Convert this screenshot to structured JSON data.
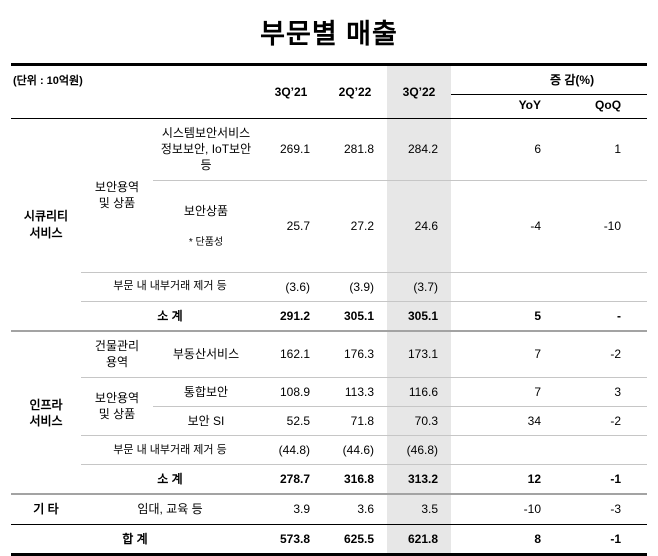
{
  "title": "부문별 매출",
  "unit_label": "(단위 : 10억원)",
  "header": {
    "q1": "3Q’21",
    "q2": "2Q’22",
    "q3": "3Q’22",
    "change": "증 감(%)",
    "yoy": "YoY",
    "qoq": "QoQ"
  },
  "groups": {
    "security": "시큐리티\n서비스",
    "infra": "인프라\n서비스",
    "etc": "기 타",
    "total": "합 계"
  },
  "subgroups": {
    "sec_service_goods": "보안용역\n및 상품",
    "building_mgmt": "건물관리\n용역",
    "infra_service_goods": "보안용역\n및 상품"
  },
  "rows": {
    "sys": {
      "item": "시스템보안서비스\n정보보안, IoT보안 등",
      "q1": "269.1",
      "q2": "281.8",
      "q3": "284.2",
      "yoy": "6",
      "qoq": "1"
    },
    "prod": {
      "item": "보안상품",
      "note": "* 단품성",
      "q1": "25.7",
      "q2": "27.2",
      "q3": "24.6",
      "yoy": "-4",
      "qoq": "-10"
    },
    "elim1": {
      "item": "부문 내 내부거래 제거 등",
      "q1": "(3.6)",
      "q2": "(3.9)",
      "q3": "(3.7)",
      "yoy": "",
      "qoq": ""
    },
    "sub1": {
      "item": "소 계",
      "q1": "291.2",
      "q2": "305.1",
      "q3": "305.1",
      "yoy": "5",
      "qoq": "-"
    },
    "re": {
      "item": "부동산서비스",
      "q1": "162.1",
      "q2": "176.3",
      "q3": "173.1",
      "yoy": "7",
      "qoq": "-2"
    },
    "int": {
      "item": "통합보안",
      "q1": "108.9",
      "q2": "113.3",
      "q3": "116.6",
      "yoy": "7",
      "qoq": "3"
    },
    "si": {
      "item": "보안 SI",
      "q1": "52.5",
      "q2": "71.8",
      "q3": "70.3",
      "yoy": "34",
      "qoq": "-2"
    },
    "elim2": {
      "item": "부문 내 내부거래 제거 등",
      "q1": "(44.8)",
      "q2": "(44.6)",
      "q3": "(46.8)",
      "yoy": "",
      "qoq": ""
    },
    "sub2": {
      "item": "소 계",
      "q1": "278.7",
      "q2": "316.8",
      "q3": "313.2",
      "yoy": "12",
      "qoq": "-1"
    },
    "etc": {
      "item": "임대, 교육 등",
      "q1": "3.9",
      "q2": "3.6",
      "q3": "3.5",
      "yoy": "-10",
      "qoq": "-3"
    },
    "total": {
      "q1": "573.8",
      "q2": "625.5",
      "q3": "621.8",
      "yoy": "8",
      "qoq": "-1"
    }
  },
  "colors": {
    "highlight_column": "#e7e7e7",
    "rule_black": "#000000",
    "rule_gray": "#c6c6c6",
    "rule_group_divider": "#a3a3a3"
  },
  "chart_data": {
    "type": "table",
    "title": "부문별 매출",
    "unit": "10억원",
    "columns": [
      "3Q'21",
      "2Q'22",
      "3Q'22",
      "YoY(%)",
      "QoQ(%)"
    ],
    "highlighted_column": "3Q'22",
    "rows": [
      {
        "segment": "시큐리티 서비스",
        "group": "보안용역 및 상품",
        "item": "시스템보안서비스 정보보안, IoT보안 등",
        "values": [
          269.1,
          281.8,
          284.2,
          6,
          1
        ]
      },
      {
        "segment": "시큐리티 서비스",
        "group": "보안용역 및 상품",
        "item": "보안상품 (단품성)",
        "values": [
          25.7,
          27.2,
          24.6,
          -4,
          -10
        ]
      },
      {
        "segment": "시큐리티 서비스",
        "group": "",
        "item": "부문 내 내부거래 제거 등",
        "values": [
          -3.6,
          -3.9,
          -3.7,
          null,
          null
        ]
      },
      {
        "segment": "시큐리티 서비스",
        "group": "",
        "item": "소계",
        "values": [
          291.2,
          305.1,
          305.1,
          5,
          null
        ]
      },
      {
        "segment": "인프라 서비스",
        "group": "건물관리 용역",
        "item": "부동산서비스",
        "values": [
          162.1,
          176.3,
          173.1,
          7,
          -2
        ]
      },
      {
        "segment": "인프라 서비스",
        "group": "보안용역 및 상품",
        "item": "통합보안",
        "values": [
          108.9,
          113.3,
          116.6,
          7,
          3
        ]
      },
      {
        "segment": "인프라 서비스",
        "group": "보안용역 및 상품",
        "item": "보안 SI",
        "values": [
          52.5,
          71.8,
          70.3,
          34,
          -2
        ]
      },
      {
        "segment": "인프라 서비스",
        "group": "",
        "item": "부문 내 내부거래 제거 등",
        "values": [
          -44.8,
          -44.6,
          -46.8,
          null,
          null
        ]
      },
      {
        "segment": "인프라 서비스",
        "group": "",
        "item": "소계",
        "values": [
          278.7,
          316.8,
          313.2,
          12,
          -1
        ]
      },
      {
        "segment": "기타",
        "group": "",
        "item": "임대, 교육 등",
        "values": [
          3.9,
          3.6,
          3.5,
          -10,
          -3
        ]
      },
      {
        "segment": "합계",
        "group": "",
        "item": "합계",
        "values": [
          573.8,
          625.5,
          621.8,
          8,
          -1
        ]
      }
    ]
  }
}
